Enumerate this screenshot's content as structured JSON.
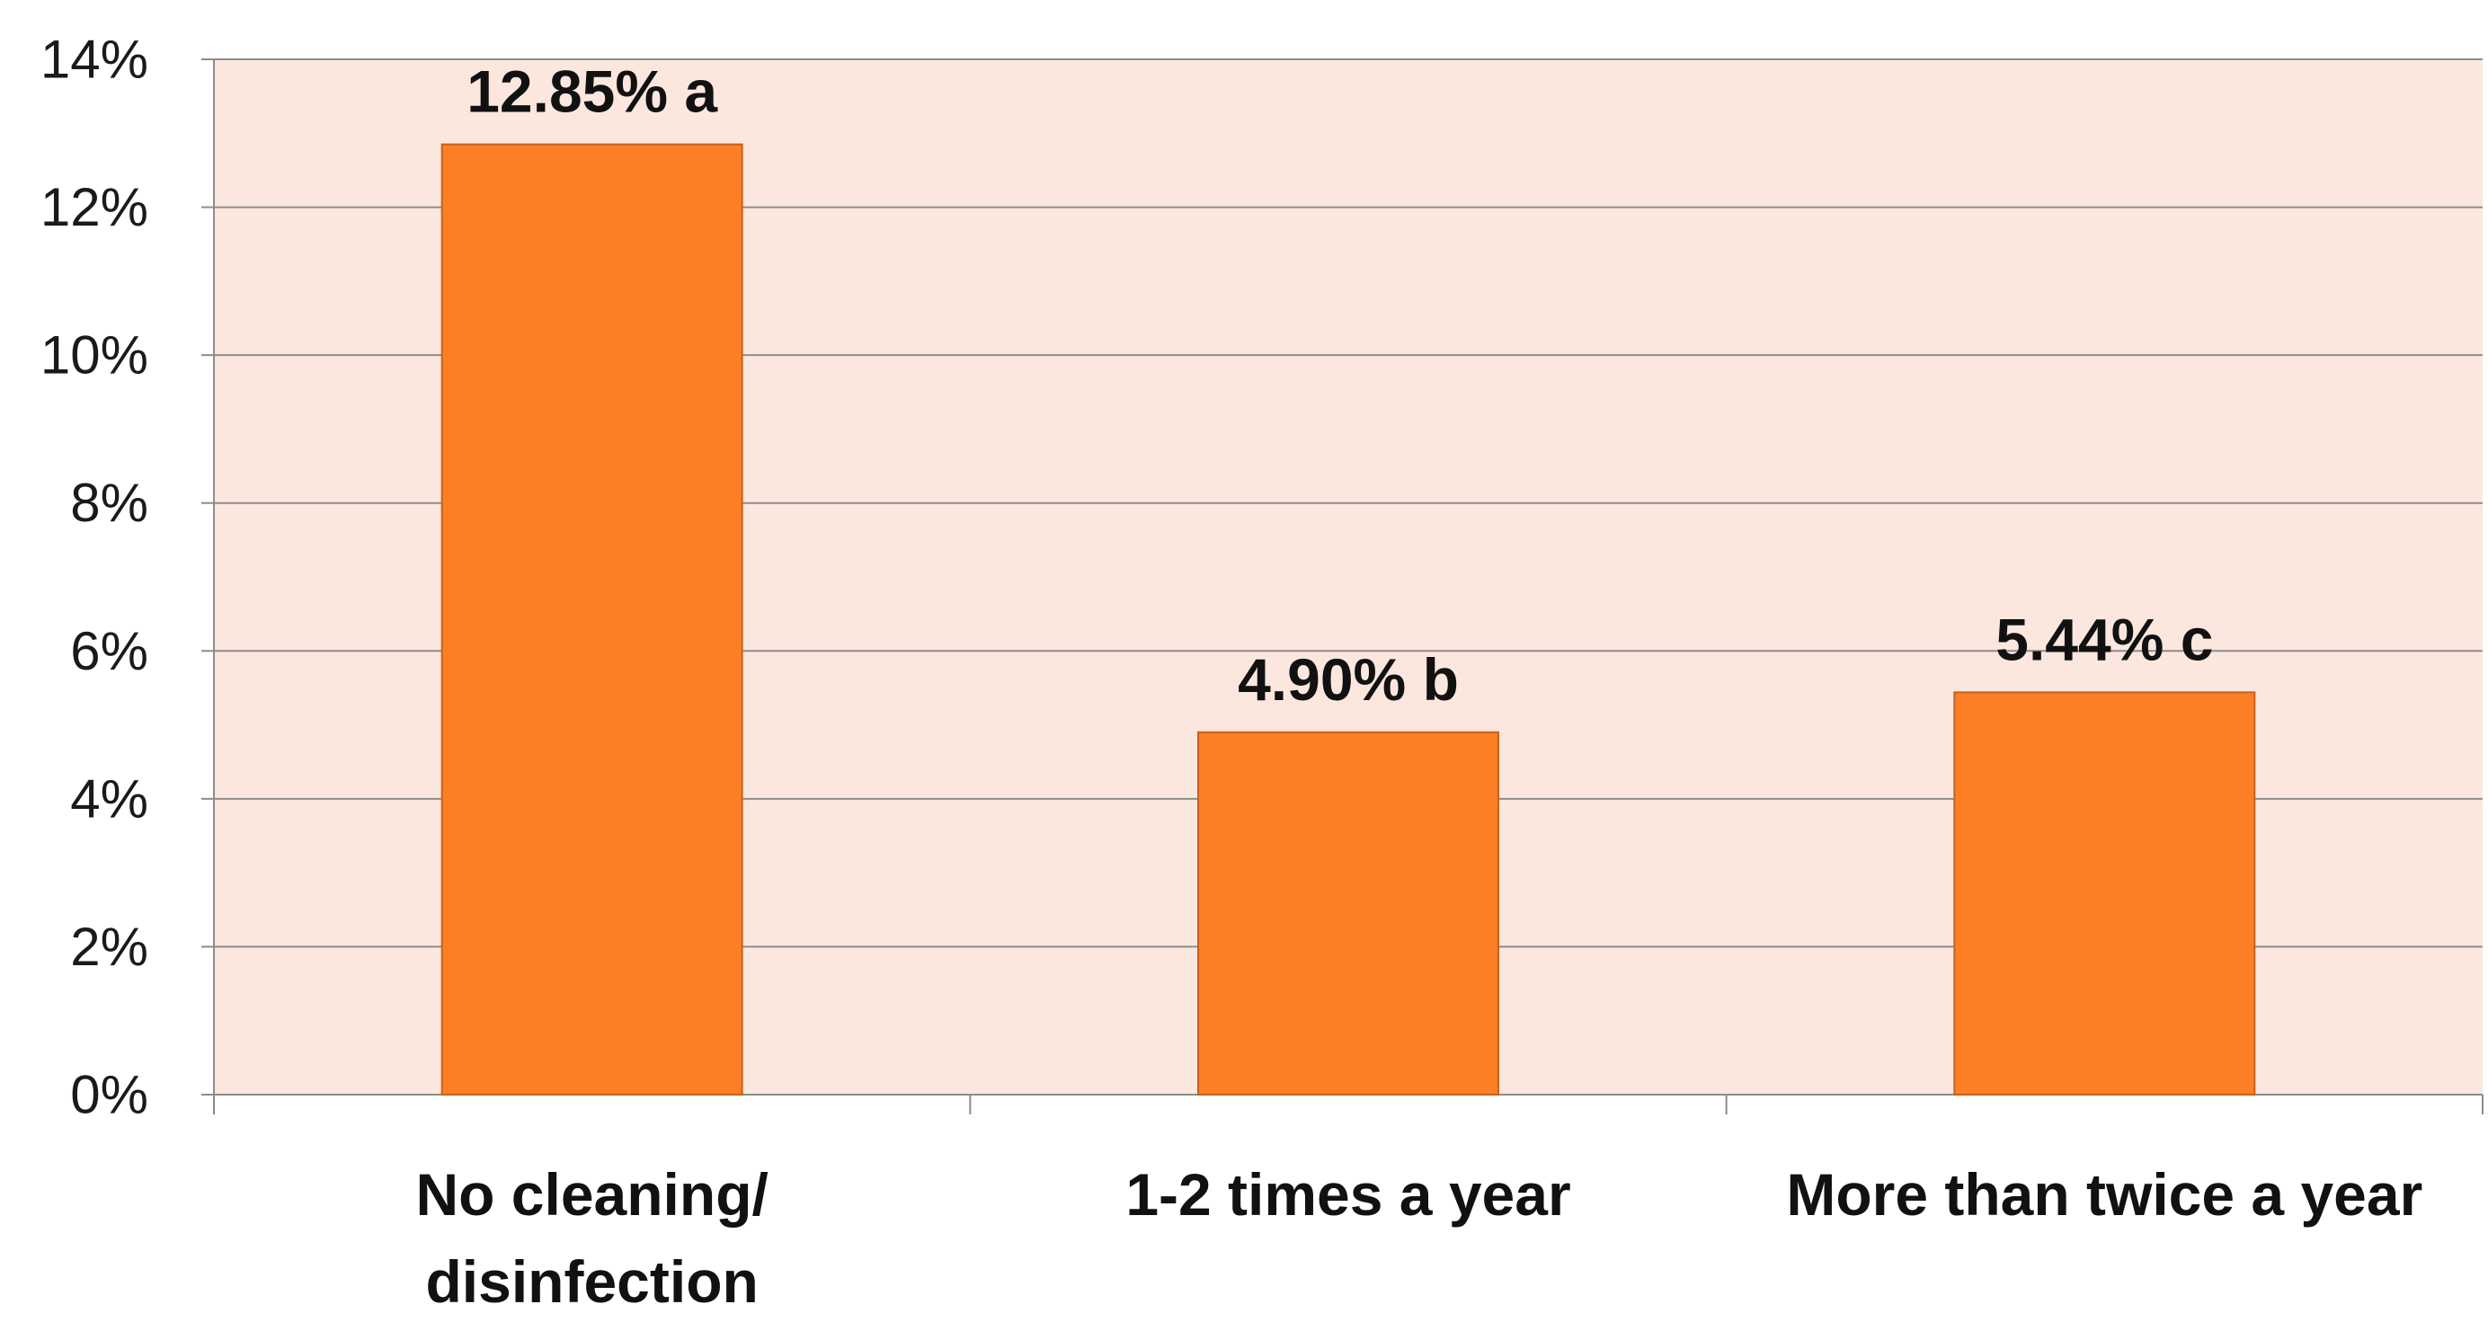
{
  "chart_data": {
    "type": "bar",
    "categories": [
      [
        "No cleaning/",
        "disinfection"
      ],
      [
        "1-2 times a year"
      ],
      [
        "More than twice a year"
      ]
    ],
    "values": [
      12.85,
      4.9,
      5.44
    ],
    "data_labels": [
      "12.85% a",
      "4.90% b",
      "5.44% c"
    ],
    "y_ticks": [
      "0%",
      "2%",
      "4%",
      "6%",
      "8%",
      "10%",
      "12%",
      "14%"
    ],
    "ylim": [
      0,
      14
    ],
    "y_step": 2,
    "grid": true,
    "legend": "none",
    "colors": {
      "bar_fill": "#FD7F25",
      "bar_stroke": "#C8601A",
      "plot_background": "#FCE7DF",
      "gridline": "#8C8C8C",
      "axis": "#8C8C8C"
    }
  }
}
